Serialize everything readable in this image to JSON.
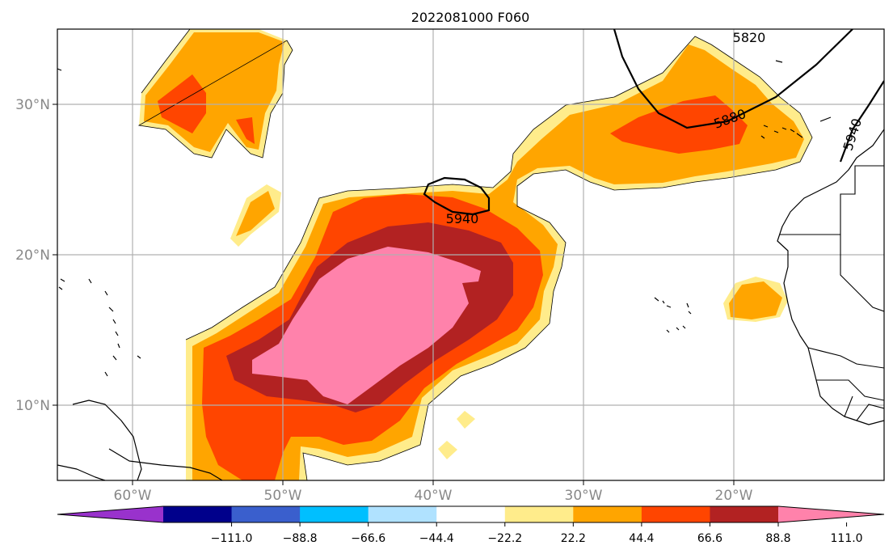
{
  "title": "2022081000 F060",
  "map": {
    "lon_ticks": [
      "60°W",
      "50°W",
      "40°W",
      "30°W",
      "20°W"
    ],
    "lat_ticks": [
      "30°N",
      "20°N",
      "10°N"
    ],
    "contour_labels": [
      "5820",
      "5880",
      "5940",
      "5940"
    ]
  },
  "colorbar": {
    "colors": [
      "#9932cc",
      "#00008b",
      "#3a5fcd",
      "#00bfff",
      "#b0e2ff",
      "#ffffff",
      "#ffec8b",
      "#ffa500",
      "#ff4500",
      "#b22222",
      "#ff82ab"
    ],
    "tick_labels": [
      "−111.0",
      "−88.8",
      "−66.6",
      "−44.4",
      "−22.2",
      "22.2",
      "44.4",
      "66.6",
      "88.8",
      "111.0"
    ]
  },
  "field_colors": {
    "c22": "#ffec8b",
    "c44": "#ffa500",
    "c66": "#ff4500",
    "c88": "#b22222",
    "c111": "#ff82ab"
  }
}
